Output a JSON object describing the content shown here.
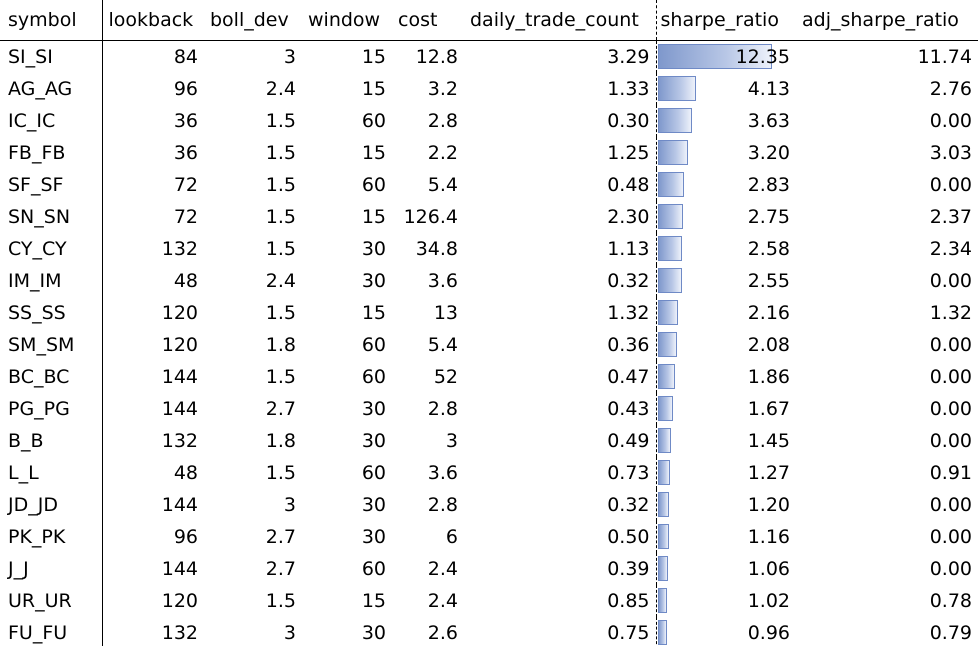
{
  "columns": [
    "symbol",
    "lookback",
    "boll_dev",
    "window",
    "cost",
    "daily_trade_count",
    "sharpe_ratio",
    "adj_sharpe_ratio"
  ],
  "sharpe_bar_max": 12.35,
  "bar_color": "#7f98cc",
  "rows": [
    {
      "symbol": "SI_SI",
      "lookback": "84",
      "boll_dev": "3",
      "window": "15",
      "cost": "12.8",
      "daily_trade_count": "3.29",
      "sharpe_ratio": "12.35",
      "adj_sharpe_ratio": "11.74"
    },
    {
      "symbol": "AG_AG",
      "lookback": "96",
      "boll_dev": "2.4",
      "window": "15",
      "cost": "3.2",
      "daily_trade_count": "1.33",
      "sharpe_ratio": "4.13",
      "adj_sharpe_ratio": "2.76"
    },
    {
      "symbol": "IC_IC",
      "lookback": "36",
      "boll_dev": "1.5",
      "window": "60",
      "cost": "2.8",
      "daily_trade_count": "0.30",
      "sharpe_ratio": "3.63",
      "adj_sharpe_ratio": "0.00"
    },
    {
      "symbol": "FB_FB",
      "lookback": "36",
      "boll_dev": "1.5",
      "window": "15",
      "cost": "2.2",
      "daily_trade_count": "1.25",
      "sharpe_ratio": "3.20",
      "adj_sharpe_ratio": "3.03"
    },
    {
      "symbol": "SF_SF",
      "lookback": "72",
      "boll_dev": "1.5",
      "window": "60",
      "cost": "5.4",
      "daily_trade_count": "0.48",
      "sharpe_ratio": "2.83",
      "adj_sharpe_ratio": "0.00"
    },
    {
      "symbol": "SN_SN",
      "lookback": "72",
      "boll_dev": "1.5",
      "window": "15",
      "cost": "126.4",
      "daily_trade_count": "2.30",
      "sharpe_ratio": "2.75",
      "adj_sharpe_ratio": "2.37"
    },
    {
      "symbol": "CY_CY",
      "lookback": "132",
      "boll_dev": "1.5",
      "window": "30",
      "cost": "34.8",
      "daily_trade_count": "1.13",
      "sharpe_ratio": "2.58",
      "adj_sharpe_ratio": "2.34"
    },
    {
      "symbol": "IM_IM",
      "lookback": "48",
      "boll_dev": "2.4",
      "window": "30",
      "cost": "3.6",
      "daily_trade_count": "0.32",
      "sharpe_ratio": "2.55",
      "adj_sharpe_ratio": "0.00"
    },
    {
      "symbol": "SS_SS",
      "lookback": "120",
      "boll_dev": "1.5",
      "window": "15",
      "cost": "13",
      "daily_trade_count": "1.32",
      "sharpe_ratio": "2.16",
      "adj_sharpe_ratio": "1.32"
    },
    {
      "symbol": "SM_SM",
      "lookback": "120",
      "boll_dev": "1.8",
      "window": "60",
      "cost": "5.4",
      "daily_trade_count": "0.36",
      "sharpe_ratio": "2.08",
      "adj_sharpe_ratio": "0.00"
    },
    {
      "symbol": "BC_BC",
      "lookback": "144",
      "boll_dev": "1.5",
      "window": "60",
      "cost": "52",
      "daily_trade_count": "0.47",
      "sharpe_ratio": "1.86",
      "adj_sharpe_ratio": "0.00"
    },
    {
      "symbol": "PG_PG",
      "lookback": "144",
      "boll_dev": "2.7",
      "window": "30",
      "cost": "2.8",
      "daily_trade_count": "0.43",
      "sharpe_ratio": "1.67",
      "adj_sharpe_ratio": "0.00"
    },
    {
      "symbol": "B_B",
      "lookback": "132",
      "boll_dev": "1.8",
      "window": "30",
      "cost": "3",
      "daily_trade_count": "0.49",
      "sharpe_ratio": "1.45",
      "adj_sharpe_ratio": "0.00"
    },
    {
      "symbol": "L_L",
      "lookback": "48",
      "boll_dev": "1.5",
      "window": "60",
      "cost": "3.6",
      "daily_trade_count": "0.73",
      "sharpe_ratio": "1.27",
      "adj_sharpe_ratio": "0.91"
    },
    {
      "symbol": "JD_JD",
      "lookback": "144",
      "boll_dev": "3",
      "window": "30",
      "cost": "2.8",
      "daily_trade_count": "0.32",
      "sharpe_ratio": "1.20",
      "adj_sharpe_ratio": "0.00"
    },
    {
      "symbol": "PK_PK",
      "lookback": "96",
      "boll_dev": "2.7",
      "window": "30",
      "cost": "6",
      "daily_trade_count": "0.50",
      "sharpe_ratio": "1.16",
      "adj_sharpe_ratio": "0.00"
    },
    {
      "symbol": "J_J",
      "lookback": "144",
      "boll_dev": "2.7",
      "window": "60",
      "cost": "2.4",
      "daily_trade_count": "0.39",
      "sharpe_ratio": "1.06",
      "adj_sharpe_ratio": "0.00"
    },
    {
      "symbol": "UR_UR",
      "lookback": "120",
      "boll_dev": "1.5",
      "window": "15",
      "cost": "2.4",
      "daily_trade_count": "0.85",
      "sharpe_ratio": "1.02",
      "adj_sharpe_ratio": "0.78"
    },
    {
      "symbol": "FU_FU",
      "lookback": "132",
      "boll_dev": "3",
      "window": "30",
      "cost": "2.6",
      "daily_trade_count": "0.75",
      "sharpe_ratio": "0.96",
      "adj_sharpe_ratio": "0.79"
    }
  ]
}
